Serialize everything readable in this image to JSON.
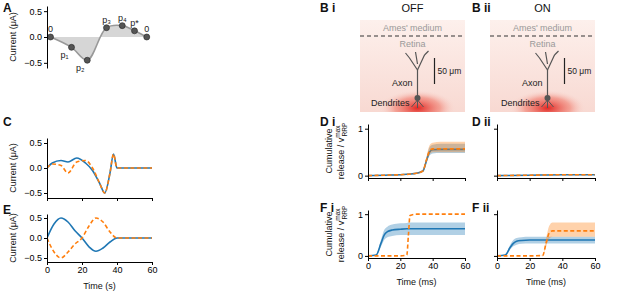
{
  "chart_data": [
    {
      "panel": "A",
      "type": "area",
      "xlim": [
        0,
        60
      ],
      "ylim": [
        -0.6,
        0.6
      ],
      "yticks": [
        {
          "value": -0.5,
          "label": "−0.5"
        },
        {
          "value": 0,
          "label": "0.0"
        },
        0.5
      ],
      "ylabel": "Current (μA)",
      "tick_labels": "y",
      "x": [
        2,
        14,
        23,
        34,
        43,
        50,
        57
      ],
      "series": [
        {
          "color": "#999999",
          "marker": "circle",
          "line_style": "solid",
          "values": [
            0,
            -0.2,
            -0.45,
            0.18,
            0.22,
            0.12,
            0
          ],
          "point_labels": [
            "0",
            "p₁",
            "p₂",
            "p₃",
            "p₄",
            "p*",
            "0"
          ]
        }
      ]
    },
    {
      "panel": "C",
      "type": "line",
      "xlim": [
        0,
        60
      ],
      "ylim": [
        -0.6,
        0.6
      ],
      "xticks": [
        0,
        20,
        40,
        60
      ],
      "yticks": [
        {
          "value": -0.5,
          "label": "−0.5"
        },
        {
          "value": 0,
          "label": "0.0"
        },
        0.5
      ],
      "ylabel": "Current (μA)",
      "tick_labels": "y",
      "x": [
        0,
        3,
        8,
        12,
        17,
        22,
        26,
        30,
        33,
        36,
        38,
        40,
        50,
        60
      ],
      "series": [
        {
          "color": "#1f77b4",
          "line_style": "solid",
          "values": [
            0,
            0.1,
            0.15,
            0.12,
            0.2,
            0.1,
            -0.05,
            -0.3,
            -0.5,
            -0.1,
            0.28,
            0,
            0,
            0
          ]
        },
        {
          "color": "#ff7f0e",
          "line_style": "dashed",
          "values": [
            0,
            0.08,
            0.05,
            -0.1,
            0.12,
            0.15,
            0,
            -0.3,
            -0.5,
            -0.1,
            0.28,
            0,
            0,
            0
          ]
        }
      ]
    },
    {
      "panel": "E",
      "type": "line",
      "xlim": [
        0,
        60
      ],
      "ylim": [
        -0.6,
        0.6
      ],
      "xticks": [
        0,
        20,
        40,
        60
      ],
      "yticks": [
        {
          "value": -0.5,
          "label": "−0.5"
        },
        {
          "value": 0,
          "label": "0.0"
        },
        0.5
      ],
      "ylabel": "Current (μA)",
      "xlabel": "Time (s)",
      "tick_labels": true,
      "x": [
        0,
        4,
        8,
        12,
        16,
        20,
        24,
        28,
        32,
        36,
        40,
        50,
        60
      ],
      "series": [
        {
          "color": "#1f77b4",
          "line_style": "solid",
          "values": [
            0,
            0.35,
            0.5,
            0.4,
            0.18,
            0,
            -0.22,
            -0.33,
            -0.25,
            -0.1,
            0,
            0,
            0
          ]
        },
        {
          "color": "#ff7f0e",
          "line_style": "dashed",
          "values": [
            0,
            -0.35,
            -0.5,
            -0.35,
            -0.15,
            0,
            0.3,
            0.5,
            0.4,
            0.15,
            0,
            0,
            0
          ]
        }
      ]
    },
    {
      "panel": "D i",
      "type": "line",
      "xlim": [
        0,
        60
      ],
      "ylim": [
        -0.05,
        1.1
      ],
      "xticks": [
        0,
        20,
        40,
        60
      ],
      "yticks": [
        0,
        1
      ],
      "tick_labels": "y",
      "ylabel": {
        "text": [
          "Cumulative",
          "release / v"
        ],
        "sup": "max",
        "sub": "RRP"
      },
      "x": [
        0,
        10,
        20,
        30,
        34,
        36,
        38,
        40,
        45,
        50,
        60
      ],
      "series": [
        {
          "color": "#1f77b4",
          "line_style": "solid",
          "values": [
            0,
            0.01,
            0.02,
            0.05,
            0.1,
            0.3,
            0.5,
            0.55,
            0.56,
            0.56,
            0.56
          ],
          "lower": [
            0,
            0.01,
            0.02,
            0.04,
            0.08,
            0.25,
            0.42,
            0.47,
            0.48,
            0.48,
            0.48
          ],
          "upper": [
            0,
            0.01,
            0.03,
            0.06,
            0.12,
            0.36,
            0.6,
            0.66,
            0.68,
            0.68,
            0.68
          ]
        },
        {
          "color": "#ff7f0e",
          "line_style": "dashed",
          "values": [
            0,
            0.01,
            0.02,
            0.05,
            0.1,
            0.32,
            0.52,
            0.57,
            0.57,
            0.57,
            0.57
          ],
          "lower": [
            0,
            0.01,
            0.02,
            0.04,
            0.08,
            0.27,
            0.45,
            0.5,
            0.5,
            0.5,
            0.5
          ],
          "upper": [
            0,
            0.01,
            0.03,
            0.06,
            0.13,
            0.38,
            0.64,
            0.7,
            0.72,
            0.72,
            0.72
          ]
        }
      ]
    },
    {
      "panel": "D ii",
      "type": "line",
      "xlim": [
        0,
        60
      ],
      "ylim": [
        -0.05,
        1.1
      ],
      "xticks": [
        0,
        20,
        40,
        60
      ],
      "yticks": [
        0,
        1
      ],
      "tick_labels": false,
      "x": [
        0,
        20,
        40,
        60
      ],
      "series": [
        {
          "color": "#1f77b4",
          "line_style": "solid",
          "values": [
            0,
            0.01,
            0.02,
            0.02
          ],
          "lower": [
            0,
            0.01,
            0.015,
            0.015
          ],
          "upper": [
            0,
            0.015,
            0.025,
            0.025
          ]
        },
        {
          "color": "#ff7f0e",
          "line_style": "dashed",
          "values": [
            0,
            0.01,
            0.02,
            0.02
          ],
          "lower": [
            0,
            0.01,
            0.015,
            0.015
          ],
          "upper": [
            0,
            0.015,
            0.025,
            0.025
          ]
        }
      ]
    },
    {
      "panel": "F i",
      "type": "line",
      "xlim": [
        0,
        60
      ],
      "ylim": [
        -0.05,
        1.1
      ],
      "xticks": [
        0,
        20,
        40,
        60
      ],
      "yticks": [
        0,
        1
      ],
      "tick_labels": true,
      "ylabel": {
        "text": [
          "Cumulative",
          "release / v"
        ],
        "sup": "max",
        "sub": "RRP"
      },
      "xlabel": "Time (ms)",
      "x": [
        0,
        5,
        8,
        10,
        12,
        15,
        20,
        24,
        25,
        26,
        30,
        40,
        60
      ],
      "series": [
        {
          "color": "#1f77b4",
          "line_style": "solid",
          "values": [
            0,
            0.02,
            0.3,
            0.5,
            0.58,
            0.62,
            0.64,
            0.65,
            0.65,
            0.65,
            0.65,
            0.65,
            0.65
          ],
          "lower": [
            0,
            0.01,
            0.22,
            0.38,
            0.45,
            0.48,
            0.5,
            0.5,
            0.5,
            0.5,
            0.5,
            0.5,
            0.5
          ],
          "upper": [
            0,
            0.03,
            0.38,
            0.62,
            0.7,
            0.75,
            0.78,
            0.79,
            0.8,
            0.8,
            0.8,
            0.8,
            0.8
          ]
        },
        {
          "color": "#ff7f0e",
          "line_style": "dashed",
          "values": [
            0,
            0,
            0,
            0,
            0,
            0,
            0,
            0.02,
            0.5,
            0.97,
            1,
            1,
            1
          ]
        }
      ]
    },
    {
      "panel": "F ii",
      "type": "line",
      "xlim": [
        0,
        60
      ],
      "ylim": [
        -0.05,
        1.1
      ],
      "xticks": [
        0,
        20,
        40,
        60
      ],
      "yticks": [
        0,
        1
      ],
      "tick_labels": "x",
      "xlabel": "Time (ms)",
      "x": [
        0,
        5,
        8,
        10,
        12,
        15,
        20,
        28,
        30,
        32,
        34,
        40,
        60
      ],
      "series": [
        {
          "color": "#1f77b4",
          "line_style": "solid",
          "values": [
            0,
            0.02,
            0.2,
            0.3,
            0.35,
            0.37,
            0.38,
            0.38,
            0.38,
            0.38,
            0.38,
            0.38,
            0.38
          ],
          "lower": [
            0,
            0.01,
            0.15,
            0.23,
            0.27,
            0.29,
            0.3,
            0.3,
            0.3,
            0.3,
            0.3,
            0.3,
            0.3
          ],
          "upper": [
            0,
            0.03,
            0.26,
            0.38,
            0.43,
            0.45,
            0.46,
            0.46,
            0.46,
            0.46,
            0.46,
            0.46,
            0.46
          ]
        },
        {
          "color": "#ff7f0e",
          "line_style": "dashed",
          "values": [
            0,
            0,
            0,
            0,
            0,
            0,
            0,
            0.01,
            0.3,
            0.55,
            0.6,
            0.6,
            0.6
          ],
          "lower": [
            0,
            0,
            0,
            0,
            0,
            0,
            0,
            0.01,
            0.22,
            0.42,
            0.46,
            0.46,
            0.46
          ],
          "upper": [
            0,
            0,
            0,
            0,
            0,
            0,
            0,
            0.02,
            0.4,
            0.72,
            0.8,
            0.8,
            0.8
          ]
        }
      ]
    }
  ],
  "diagrams": [
    {
      "panel": "B i",
      "title": "OFF",
      "labels": {
        "medium": "Ames' medium",
        "tissue": "Retina",
        "axon": "Axon",
        "dendrites": "Dendrites",
        "scale": "50 μm"
      }
    },
    {
      "panel": "B ii",
      "title": "ON",
      "labels": {
        "medium": "Ames' medium",
        "tissue": "Retina",
        "axon": "Axon",
        "dendrites": "Dendrites",
        "scale": "50 μm"
      }
    }
  ]
}
